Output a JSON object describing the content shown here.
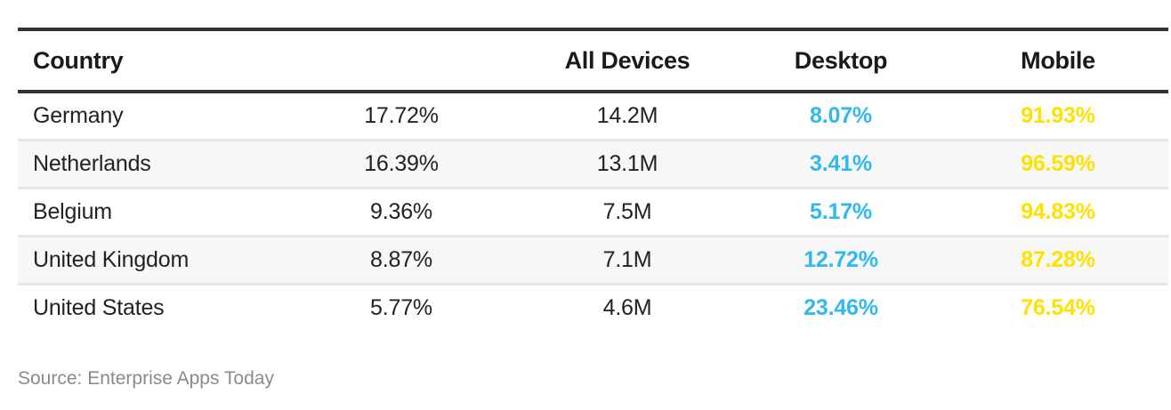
{
  "table": {
    "headers": [
      "Country",
      "",
      "All Devices",
      "Desktop",
      "Mobile"
    ],
    "rows": [
      {
        "country": "Germany",
        "share": "17.72%",
        "all_devices": "14.2M",
        "desktop": "8.07%",
        "mobile": "91.93%"
      },
      {
        "country": "Netherlands",
        "share": "16.39%",
        "all_devices": "13.1M",
        "desktop": "3.41%",
        "mobile": "96.59%"
      },
      {
        "country": "Belgium",
        "share": "9.36%",
        "all_devices": "7.5M",
        "desktop": "5.17%",
        "mobile": "94.83%"
      },
      {
        "country": "United Kingdom",
        "share": "8.87%",
        "all_devices": "7.1M",
        "desktop": "12.72%",
        "mobile": "87.28%"
      },
      {
        "country": "United States",
        "share": "5.77%",
        "all_devices": "4.6M",
        "desktop": "23.46%",
        "mobile": "76.54%"
      }
    ]
  },
  "colors": {
    "desktop": "#2fb9ef",
    "mobile": "#ffe100",
    "header_rule": "#333333",
    "row_alt": "#f7f7f7"
  },
  "footer": {
    "source": "Source: Enterprise Apps Today"
  }
}
